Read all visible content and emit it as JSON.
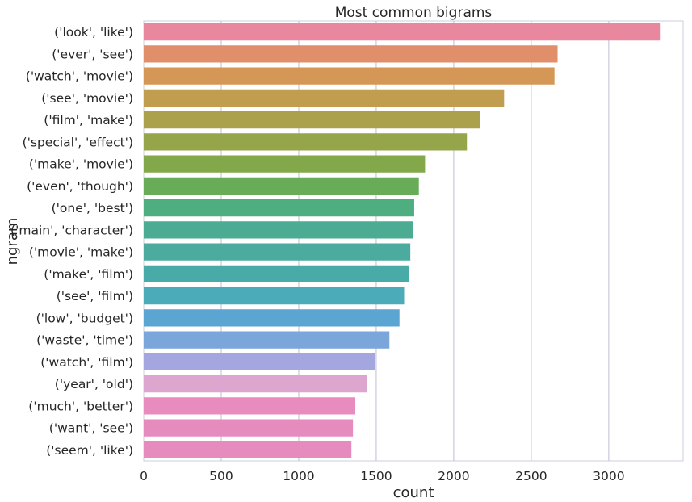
{
  "chart_data": {
    "type": "bar",
    "orientation": "horizontal",
    "title": "Most common bigrams",
    "xlabel": "count",
    "ylabel": "ngram",
    "xlim": [
      0,
      3480
    ],
    "xticks": [
      0,
      500,
      1000,
      1500,
      2000,
      2500,
      3000
    ],
    "grid": true,
    "categories": [
      "('look', 'like')",
      "('ever', 'see')",
      "('watch', 'movie')",
      "('see', 'movie')",
      "('film', 'make')",
      "('special', 'effect')",
      "('make', 'movie')",
      "('even', 'though')",
      "('one', 'best')",
      "('main', 'character')",
      "('movie', 'make')",
      "('make', 'film')",
      "('see', 'film')",
      "('low', 'budget')",
      "('waste', 'time')",
      "('watch', 'film')",
      "('year', 'old')",
      "('much', 'better')",
      "('want', 'see')",
      "('seem', 'like')"
    ],
    "values": [
      3330,
      2670,
      2650,
      2325,
      2170,
      2085,
      1815,
      1775,
      1745,
      1735,
      1720,
      1710,
      1680,
      1650,
      1585,
      1490,
      1440,
      1365,
      1350,
      1340
    ],
    "colors": [
      "#e8879d",
      "#e08f6a",
      "#d59755",
      "#c09d4f",
      "#aba14c",
      "#95a64a",
      "#82a84a",
      "#68ac58",
      "#4eae80",
      "#4cab93",
      "#4aab9e",
      "#49aba8",
      "#4babb8",
      "#5aa5d1",
      "#7aa6dc",
      "#a3a6df",
      "#dca6cf",
      "#e88cbf",
      "#e68bbe",
      "#e58bbd"
    ]
  }
}
